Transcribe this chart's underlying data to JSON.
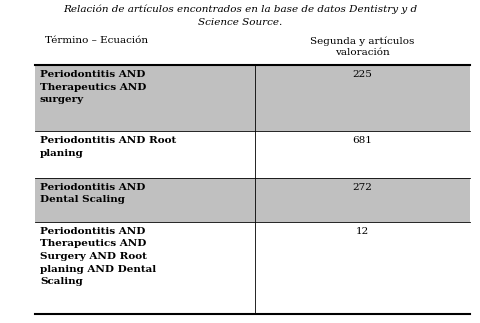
{
  "title_line1": "Relación de artículos encontrados en la base de datos Dentistry y d",
  "title_line2": "Science Source.",
  "col1_header": "Término – Ecuación",
  "col2_header_line1": "Segunda y artículos",
  "col2_header_line2": "valoración",
  "rows": [
    {
      "term": "Periodontitis AND\nTherapeutics AND\nsurgery",
      "value": "225",
      "shaded": true
    },
    {
      "term": "Periodontitis AND Root\nplaning",
      "value": "681",
      "shaded": false
    },
    {
      "term": "Periodontitis AND\nDental Scaling",
      "value": "272",
      "shaded": true
    },
    {
      "term": "Periodontitis AND\nTherapeutics AND\nSurgery AND Root\nplaning AND Dental\nScaling",
      "value": "12",
      "shaded": false
    }
  ],
  "shaded_color": "#c0c0c0",
  "title_fontsize": 7.5,
  "header_fontsize": 7.5,
  "cell_fontsize": 7.5,
  "fig_width": 4.8,
  "fig_height": 3.23,
  "dpi": 100
}
